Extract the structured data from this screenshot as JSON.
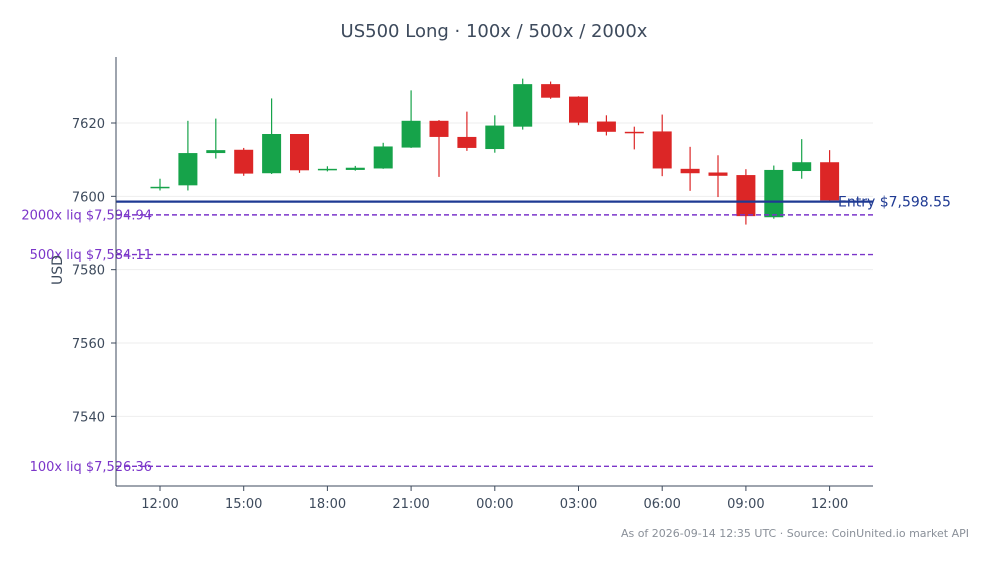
{
  "chart_data": {
    "type": "candlestick",
    "title": "US500 Long · 100x / 500x / 2000x",
    "ylabel": "USD",
    "xlabel": "",
    "ylim": [
      7521,
      7638
    ],
    "y_ticks": [
      7540,
      7560,
      7580,
      7600,
      7620
    ],
    "x_ticks": [
      "12:00",
      "15:00",
      "18:00",
      "21:00",
      "00:00",
      "03:00",
      "06:00",
      "09:00",
      "12:00"
    ],
    "x_tick_index": [
      0,
      3,
      6,
      9,
      12,
      15,
      18,
      21,
      24
    ],
    "candles": [
      {
        "o": 7602.5,
        "h": 7604.8,
        "l": 7601.6,
        "c": 7602.6
      },
      {
        "o": 7603.0,
        "h": 7620.6,
        "l": 7601.6,
        "c": 7611.8
      },
      {
        "o": 7611.8,
        "h": 7621.2,
        "l": 7610.3,
        "c": 7612.6
      },
      {
        "o": 7612.7,
        "h": 7613.2,
        "l": 7605.6,
        "c": 7606.2
      },
      {
        "o": 7606.3,
        "h": 7626.7,
        "l": 7606.1,
        "c": 7617.0
      },
      {
        "o": 7617.0,
        "h": 7617.0,
        "l": 7606.4,
        "c": 7607.1
      },
      {
        "o": 7607.1,
        "h": 7608.2,
        "l": 7606.8,
        "c": 7607.5
      },
      {
        "o": 7607.2,
        "h": 7608.3,
        "l": 7607.0,
        "c": 7607.8
      },
      {
        "o": 7607.6,
        "h": 7614.6,
        "l": 7607.5,
        "c": 7613.6
      },
      {
        "o": 7613.3,
        "h": 7628.9,
        "l": 7613.2,
        "c": 7620.6
      },
      {
        "o": 7620.6,
        "h": 7620.8,
        "l": 7605.3,
        "c": 7616.2
      },
      {
        "o": 7616.2,
        "h": 7623.1,
        "l": 7612.4,
        "c": 7613.2
      },
      {
        "o": 7612.9,
        "h": 7622.1,
        "l": 7611.9,
        "c": 7619.3
      },
      {
        "o": 7619.0,
        "h": 7632.1,
        "l": 7618.2,
        "c": 7630.6
      },
      {
        "o": 7630.6,
        "h": 7631.3,
        "l": 7626.6,
        "c": 7626.9
      },
      {
        "o": 7627.2,
        "h": 7627.3,
        "l": 7619.4,
        "c": 7620.1
      },
      {
        "o": 7620.4,
        "h": 7622.1,
        "l": 7616.6,
        "c": 7617.6
      },
      {
        "o": 7617.6,
        "h": 7619.0,
        "l": 7612.8,
        "c": 7617.4
      },
      {
        "o": 7617.7,
        "h": 7622.3,
        "l": 7605.5,
        "c": 7607.6
      },
      {
        "o": 7607.5,
        "h": 7613.5,
        "l": 7601.5,
        "c": 7606.3
      },
      {
        "o": 7606.5,
        "h": 7611.2,
        "l": 7599.8,
        "c": 7605.6
      },
      {
        "o": 7605.8,
        "h": 7607.4,
        "l": 7592.3,
        "c": 7594.6
      },
      {
        "o": 7594.3,
        "h": 7608.4,
        "l": 7593.9,
        "c": 7607.2
      },
      {
        "o": 7606.9,
        "h": 7615.6,
        "l": 7604.8,
        "c": 7609.3
      },
      {
        "o": 7609.3,
        "h": 7612.6,
        "l": 7598.7,
        "c": 7598.9
      }
    ],
    "lines": [
      {
        "label": "Entry $7,598.55",
        "value": 7598.55,
        "style": "solid",
        "color": "#1f3a93",
        "label_side": "right"
      },
      {
        "label": "2000x liq $7,594.94",
        "value": 7594.94,
        "style": "dashed",
        "color": "#7b35c9",
        "label_side": "left"
      },
      {
        "label": "500x liq $7,584.11",
        "value": 7584.11,
        "style": "dashed",
        "color": "#7b35c9",
        "label_side": "left"
      },
      {
        "label": "100x liq $7,526.36",
        "value": 7526.36,
        "style": "dashed",
        "color": "#7b35c9",
        "label_side": "left"
      }
    ],
    "colors": {
      "up": "#16a34a",
      "down": "#dc2626",
      "axis": "#3d4a5c",
      "grid": "#eeeeee"
    },
    "grid": true
  },
  "footer": "As of 2026-09-14 12:35 UTC · Source: CoinUnited.io market API"
}
